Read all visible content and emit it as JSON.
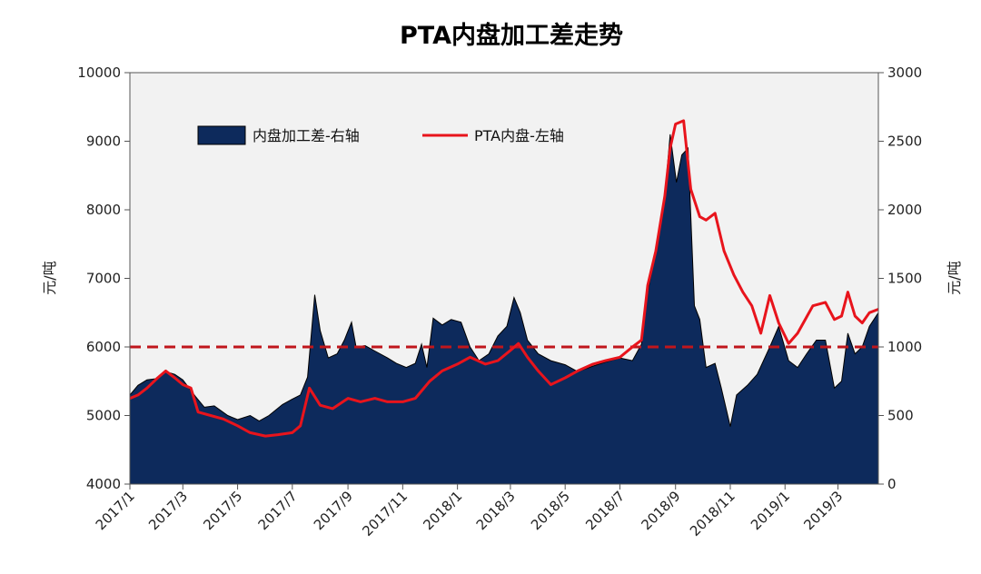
{
  "chart_data": {
    "type": "area+line",
    "title": "PTA内盘加工差走势",
    "ylabel_left": "元/吨",
    "ylabel_right": "元/吨",
    "ylim_left": [
      4000,
      10000
    ],
    "ylim_right": [
      0,
      3000
    ],
    "yticks_left": [
      "4000",
      "5000",
      "6000",
      "7000",
      "8000",
      "9000",
      "10000"
    ],
    "yticks_right": [
      "0",
      "500",
      "1000",
      "1500",
      "2000",
      "2500",
      "3000"
    ],
    "x_ticks": [
      "2017/1",
      "2017/3",
      "2017/5",
      "2017/7",
      "2017/9",
      "2017/11",
      "2018/1",
      "2018/3",
      "2018/5",
      "2018/7",
      "2018/9",
      "2018/11",
      "2019/1",
      "2019/3"
    ],
    "x_range": [
      "2017-01-01",
      "2019-04-15"
    ],
    "reference_line": {
      "axis": "left",
      "value": 6000,
      "style": "dashed",
      "color": "#c0161c"
    },
    "legend": {
      "position": "top-left"
    },
    "colors": {
      "area": "#0d2a5c",
      "line": "#e8141c",
      "plot_bg": "#f2f2f2"
    },
    "series": [
      {
        "name": "内盘加工差-右轴",
        "kind": "area",
        "axis": "right",
        "points": [
          [
            "2017-01-01",
            650
          ],
          [
            "2017-01-10",
            720
          ],
          [
            "2017-01-20",
            760
          ],
          [
            "2017-02-01",
            770
          ],
          [
            "2017-02-10",
            820
          ],
          [
            "2017-02-20",
            800
          ],
          [
            "2017-03-01",
            760
          ],
          [
            "2017-03-15",
            640
          ],
          [
            "2017-03-25",
            560
          ],
          [
            "2017-04-05",
            570
          ],
          [
            "2017-04-20",
            500
          ],
          [
            "2017-05-01",
            470
          ],
          [
            "2017-05-15",
            500
          ],
          [
            "2017-05-25",
            460
          ],
          [
            "2017-06-05",
            500
          ],
          [
            "2017-06-20",
            580
          ],
          [
            "2017-07-01",
            620
          ],
          [
            "2017-07-10",
            650
          ],
          [
            "2017-07-18",
            780
          ],
          [
            "2017-07-26",
            1380
          ],
          [
            "2017-08-01",
            1120
          ],
          [
            "2017-08-10",
            920
          ],
          [
            "2017-08-20",
            950
          ],
          [
            "2017-08-28",
            1050
          ],
          [
            "2017-09-05",
            1180
          ],
          [
            "2017-09-10",
            1000
          ],
          [
            "2017-09-20",
            1010
          ],
          [
            "2017-10-01",
            970
          ],
          [
            "2017-10-15",
            920
          ],
          [
            "2017-10-25",
            880
          ],
          [
            "2017-11-05",
            850
          ],
          [
            "2017-11-15",
            880
          ],
          [
            "2017-11-22",
            1020
          ],
          [
            "2017-11-28",
            850
          ],
          [
            "2017-12-05",
            1210
          ],
          [
            "2017-12-15",
            1160
          ],
          [
            "2017-12-25",
            1200
          ],
          [
            "2018-01-05",
            1180
          ],
          [
            "2018-01-15",
            1000
          ],
          [
            "2018-01-25",
            900
          ],
          [
            "2018-02-05",
            950
          ],
          [
            "2018-02-15",
            1080
          ],
          [
            "2018-02-25",
            1150
          ],
          [
            "2018-03-05",
            1360
          ],
          [
            "2018-03-12",
            1250
          ],
          [
            "2018-03-20",
            1050
          ],
          [
            "2018-04-01",
            950
          ],
          [
            "2018-04-15",
            900
          ],
          [
            "2018-05-01",
            870
          ],
          [
            "2018-05-15",
            820
          ],
          [
            "2018-06-01",
            860
          ],
          [
            "2018-06-15",
            890
          ],
          [
            "2018-07-01",
            920
          ],
          [
            "2018-07-15",
            900
          ],
          [
            "2018-07-25",
            1020
          ],
          [
            "2018-08-01",
            1400
          ],
          [
            "2018-08-10",
            1700
          ],
          [
            "2018-08-20",
            2100
          ],
          [
            "2018-08-26",
            2550
          ],
          [
            "2018-09-02",
            2200
          ],
          [
            "2018-09-08",
            2400
          ],
          [
            "2018-09-15",
            2450
          ],
          [
            "2018-09-22",
            1300
          ],
          [
            "2018-09-28",
            1200
          ],
          [
            "2018-10-05",
            850
          ],
          [
            "2018-10-15",
            880
          ],
          [
            "2018-10-22",
            700
          ],
          [
            "2018-11-01",
            420
          ],
          [
            "2018-11-08",
            650
          ],
          [
            "2018-11-20",
            720
          ],
          [
            "2018-12-01",
            800
          ],
          [
            "2018-12-15",
            1000
          ],
          [
            "2018-12-25",
            1150
          ],
          [
            "2019-01-05",
            900
          ],
          [
            "2019-01-15",
            850
          ],
          [
            "2019-01-25",
            950
          ],
          [
            "2019-02-05",
            1050
          ],
          [
            "2019-02-15",
            1050
          ],
          [
            "2019-02-25",
            700
          ],
          [
            "2019-03-05",
            750
          ],
          [
            "2019-03-12",
            1100
          ],
          [
            "2019-03-20",
            950
          ],
          [
            "2019-03-28",
            1000
          ],
          [
            "2019-04-05",
            1150
          ],
          [
            "2019-04-15",
            1250
          ]
        ]
      },
      {
        "name": "PTA内盘-左轴",
        "kind": "line",
        "axis": "left",
        "points": [
          [
            "2017-01-01",
            5250
          ],
          [
            "2017-01-10",
            5300
          ],
          [
            "2017-01-20",
            5400
          ],
          [
            "2017-02-01",
            5550
          ],
          [
            "2017-02-10",
            5650
          ],
          [
            "2017-02-20",
            5550
          ],
          [
            "2017-03-01",
            5450
          ],
          [
            "2017-03-10",
            5400
          ],
          [
            "2017-03-18",
            5050
          ],
          [
            "2017-04-01",
            5000
          ],
          [
            "2017-04-15",
            4950
          ],
          [
            "2017-05-01",
            4850
          ],
          [
            "2017-05-15",
            4750
          ],
          [
            "2017-06-01",
            4700
          ],
          [
            "2017-06-15",
            4720
          ],
          [
            "2017-07-01",
            4750
          ],
          [
            "2017-07-10",
            4850
          ],
          [
            "2017-07-20",
            5400
          ],
          [
            "2017-08-01",
            5150
          ],
          [
            "2017-08-15",
            5100
          ],
          [
            "2017-09-01",
            5250
          ],
          [
            "2017-09-15",
            5200
          ],
          [
            "2017-10-01",
            5250
          ],
          [
            "2017-10-15",
            5200
          ],
          [
            "2017-11-01",
            5200
          ],
          [
            "2017-11-15",
            5250
          ],
          [
            "2017-12-01",
            5500
          ],
          [
            "2017-12-15",
            5650
          ],
          [
            "2018-01-01",
            5750
          ],
          [
            "2018-01-15",
            5850
          ],
          [
            "2018-02-01",
            5750
          ],
          [
            "2018-02-15",
            5800
          ],
          [
            "2018-03-01",
            5950
          ],
          [
            "2018-03-10",
            6050
          ],
          [
            "2018-03-20",
            5850
          ],
          [
            "2018-04-01",
            5650
          ],
          [
            "2018-04-15",
            5450
          ],
          [
            "2018-05-01",
            5550
          ],
          [
            "2018-05-15",
            5650
          ],
          [
            "2018-06-01",
            5750
          ],
          [
            "2018-06-15",
            5800
          ],
          [
            "2018-07-01",
            5850
          ],
          [
            "2018-07-15",
            6000
          ],
          [
            "2018-07-25",
            6100
          ],
          [
            "2018-08-01",
            6900
          ],
          [
            "2018-08-10",
            7400
          ],
          [
            "2018-08-20",
            8200
          ],
          [
            "2018-08-26",
            8900
          ],
          [
            "2018-09-01",
            9250
          ],
          [
            "2018-09-10",
            9300
          ],
          [
            "2018-09-18",
            8300
          ],
          [
            "2018-09-28",
            7900
          ],
          [
            "2018-10-05",
            7850
          ],
          [
            "2018-10-15",
            7950
          ],
          [
            "2018-10-25",
            7400
          ],
          [
            "2018-11-05",
            7050
          ],
          [
            "2018-11-15",
            6800
          ],
          [
            "2018-11-25",
            6600
          ],
          [
            "2018-12-05",
            6200
          ],
          [
            "2018-12-15",
            6750
          ],
          [
            "2018-12-25",
            6350
          ],
          [
            "2019-01-05",
            6050
          ],
          [
            "2019-01-15",
            6200
          ],
          [
            "2019-02-01",
            6600
          ],
          [
            "2019-02-15",
            6650
          ],
          [
            "2019-02-25",
            6400
          ],
          [
            "2019-03-05",
            6450
          ],
          [
            "2019-03-12",
            6800
          ],
          [
            "2019-03-20",
            6450
          ],
          [
            "2019-03-28",
            6350
          ],
          [
            "2019-04-05",
            6500
          ],
          [
            "2019-04-15",
            6550
          ]
        ]
      }
    ]
  }
}
